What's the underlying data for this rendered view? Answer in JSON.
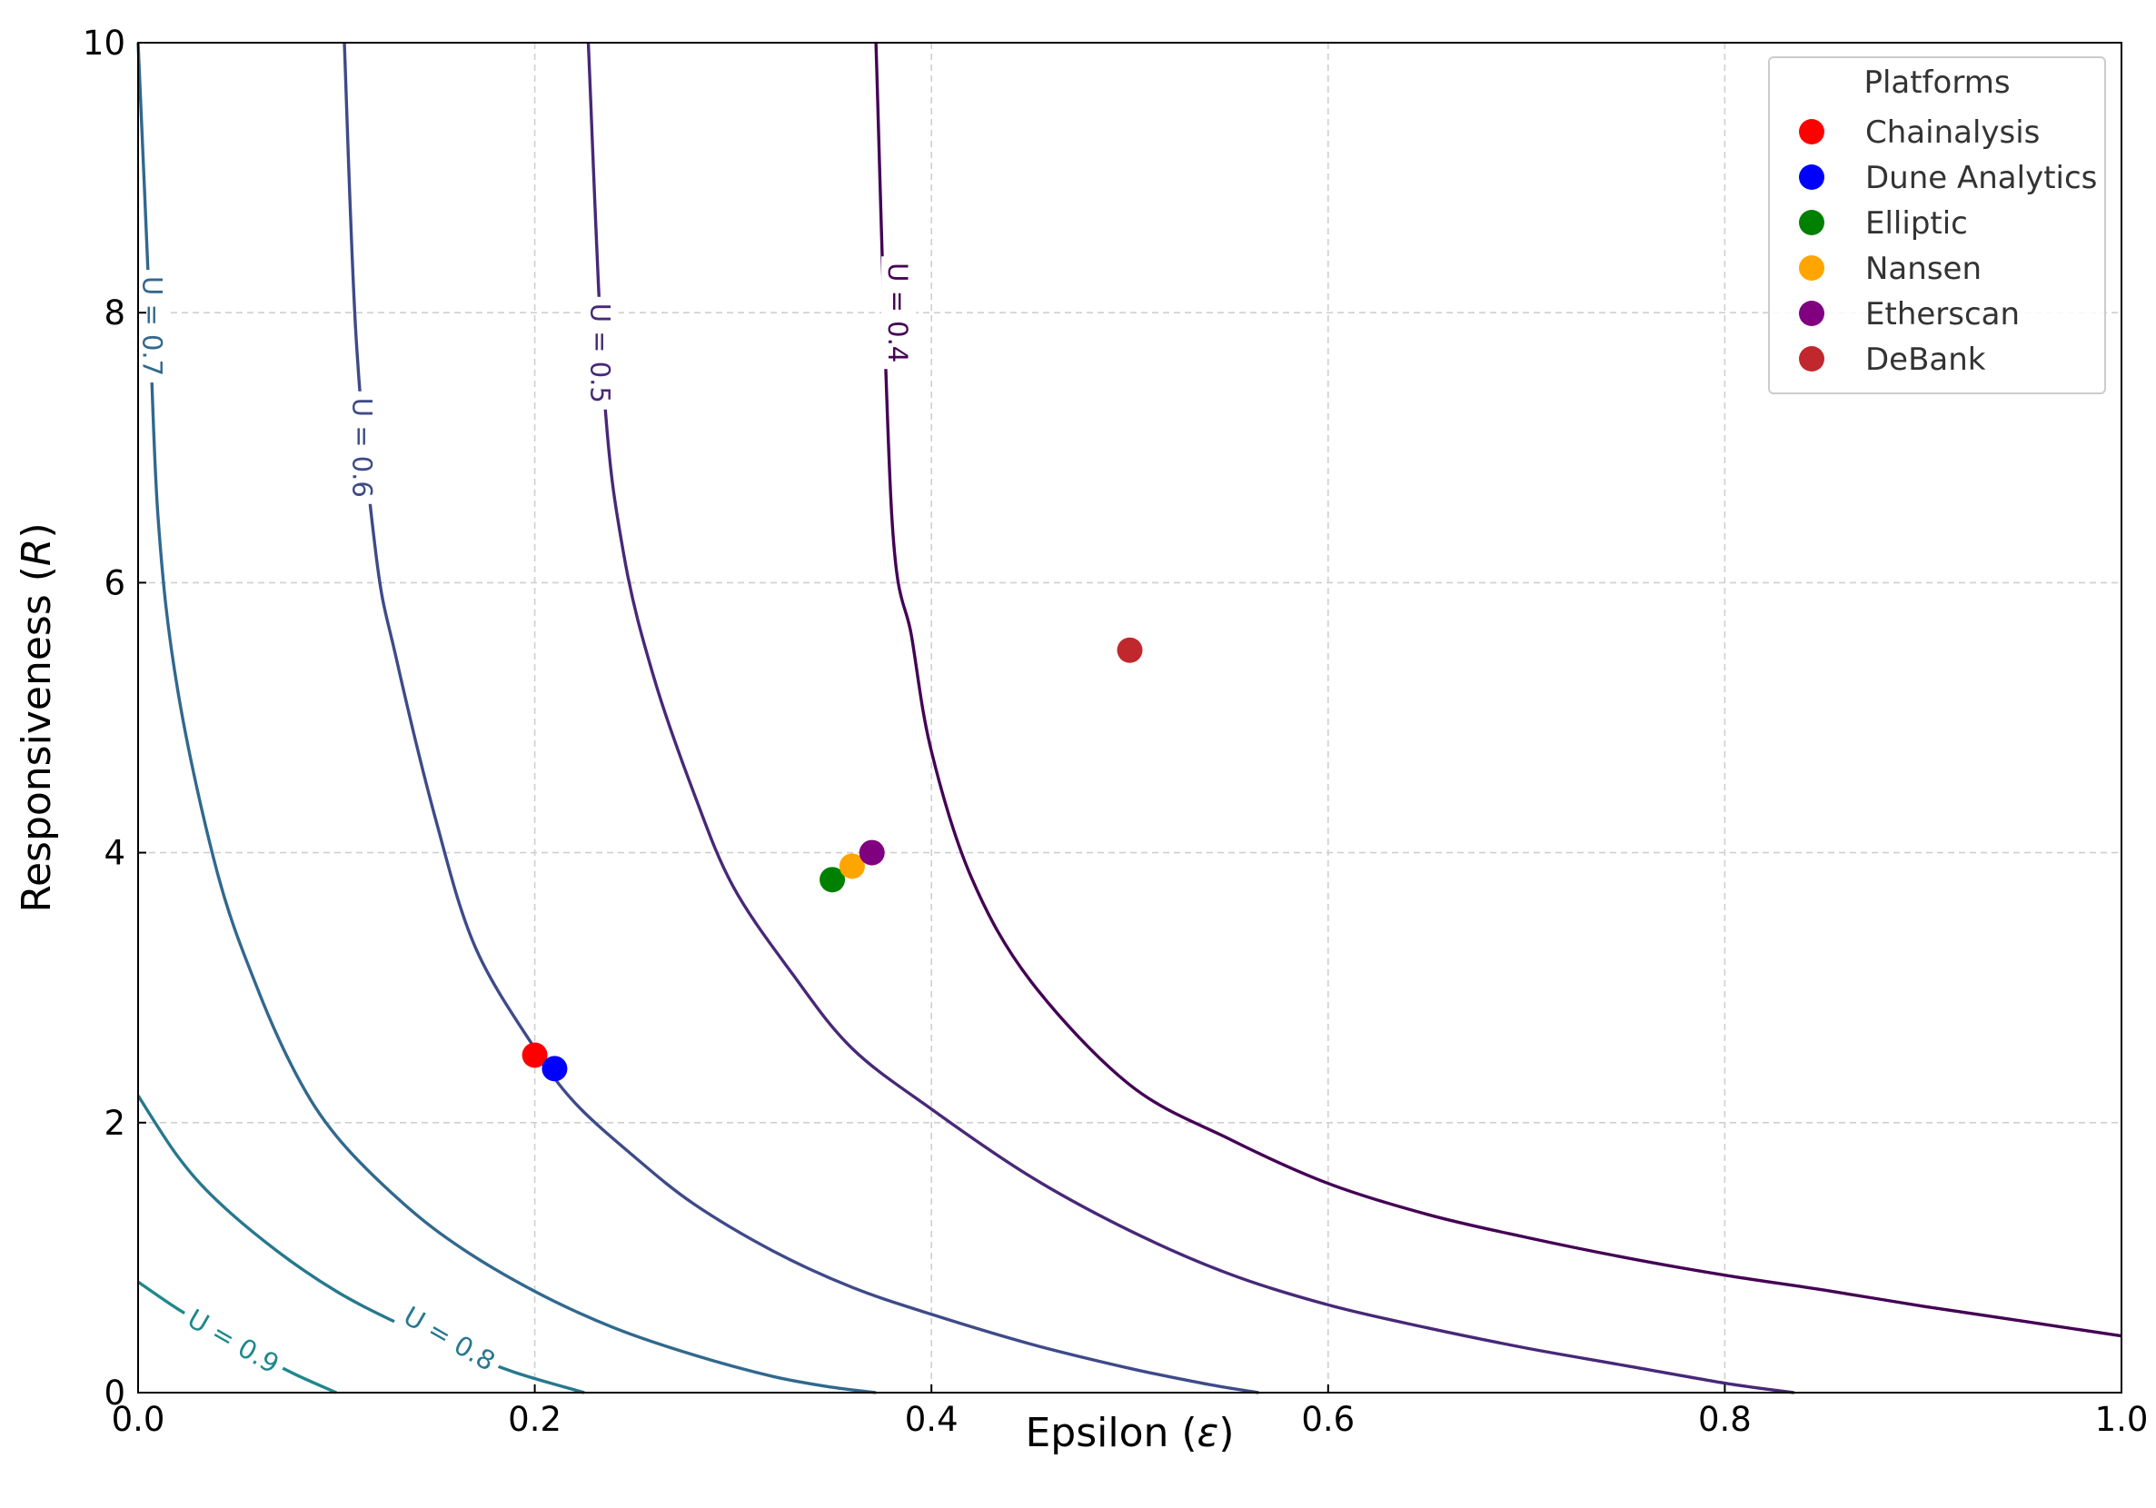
{
  "chart_data": {
    "type": "contour+scatter",
    "xlabel": "Epsilon (",
    "xlabel_symbol": "ε",
    "xlabel_close": ")",
    "ylabel": "Responsiveness (",
    "ylabel_symbol": "R",
    "ylabel_close": ")",
    "xlim": [
      0,
      1.0
    ],
    "ylim": [
      0,
      10
    ],
    "x_ticks": [
      0.0,
      0.2,
      0.4,
      0.6,
      0.8,
      1.0
    ],
    "x_tick_labels": [
      "0.0",
      "0.2",
      "0.4",
      "0.6",
      "0.8",
      "1.0"
    ],
    "y_ticks": [
      0,
      2,
      4,
      6,
      8,
      10
    ],
    "y_tick_labels": [
      "0",
      "2",
      "4",
      "6",
      "8",
      "10"
    ],
    "grid": true,
    "contours": [
      {
        "name": "contour-u-0-4",
        "label": "U = 0.4",
        "level": 0.4,
        "color": "#440154",
        "x": [
          0.372,
          0.38,
          0.39,
          0.4,
          0.42,
          0.45,
          0.5,
          0.55,
          0.6,
          0.65,
          0.7,
          0.75,
          0.8,
          0.85,
          0.9,
          0.95,
          1.0
        ],
        "y": [
          10.0,
          6.5,
          5.6,
          4.75,
          3.82,
          3.05,
          2.28,
          1.88,
          1.55,
          1.32,
          1.15,
          1.0,
          0.87,
          0.76,
          0.64,
          0.53,
          0.42
        ]
      },
      {
        "name": "contour-u-0-5",
        "label": "U = 0.5",
        "level": 0.5,
        "color": "#482878",
        "x": [
          0.227,
          0.235,
          0.245,
          0.26,
          0.28,
          0.3,
          0.33,
          0.36,
          0.4,
          0.45,
          0.5,
          0.55,
          0.6,
          0.65,
          0.7,
          0.75,
          0.8,
          0.835
        ],
        "y": [
          10.0,
          7.4,
          6.2,
          5.3,
          4.45,
          3.75,
          3.1,
          2.55,
          2.1,
          1.6,
          1.2,
          0.88,
          0.65,
          0.48,
          0.33,
          0.2,
          0.07,
          0.0
        ]
      },
      {
        "name": "contour-u-0-6",
        "label": "U = 0.6",
        "level": 0.6,
        "color": "#3e4a89",
        "x": [
          0.104,
          0.11,
          0.12,
          0.13,
          0.15,
          0.17,
          0.2,
          0.22,
          0.25,
          0.28,
          0.32,
          0.36,
          0.4,
          0.45,
          0.5,
          0.54,
          0.565
        ],
        "y": [
          10.0,
          7.8,
          6.2,
          5.45,
          4.25,
          3.3,
          2.55,
          2.15,
          1.75,
          1.4,
          1.05,
          0.78,
          0.58,
          0.36,
          0.18,
          0.06,
          0.0
        ]
      },
      {
        "name": "contour-u-0-7",
        "label": "U = 0.7",
        "level": 0.7,
        "color": "#31688e",
        "x": [
          0.0,
          0.005,
          0.01,
          0.02,
          0.04,
          0.06,
          0.08,
          0.1,
          0.13,
          0.16,
          0.2,
          0.24,
          0.28,
          0.32,
          0.35,
          0.372
        ],
        "y": [
          10.0,
          8.3,
          6.5,
          5.2,
          3.85,
          3.0,
          2.35,
          1.9,
          1.45,
          1.1,
          0.75,
          0.48,
          0.28,
          0.12,
          0.04,
          0.0
        ]
      },
      {
        "name": "contour-u-0-8",
        "label": "U = 0.8",
        "level": 0.8,
        "color": "#26788e",
        "x": [
          0.0,
          0.02,
          0.04,
          0.07,
          0.1,
          0.13,
          0.16,
          0.19,
          0.225
        ],
        "y": [
          2.2,
          1.75,
          1.42,
          1.05,
          0.75,
          0.52,
          0.32,
          0.15,
          0.0
        ]
      },
      {
        "name": "contour-u-0-9",
        "label": "U = 0.9",
        "level": 0.9,
        "color": "#1f888c",
        "x": [
          0.0,
          0.02,
          0.04,
          0.06,
          0.08,
          0.1
        ],
        "y": [
          0.82,
          0.62,
          0.45,
          0.28,
          0.13,
          0.0
        ]
      }
    ],
    "contour_labels": [
      {
        "text": "U = 0.4",
        "x": 0.383,
        "y": 8.0,
        "color": "#440154"
      },
      {
        "text": "U = 0.5",
        "x": 0.233,
        "y": 7.7,
        "color": "#482878"
      },
      {
        "text": "U = 0.6",
        "x": 0.113,
        "y": 7.0,
        "color": "#3e4a89"
      },
      {
        "text": "U = 0.7",
        "x": 0.007,
        "y": 7.9,
        "color": "#31688e"
      },
      {
        "text": "U = 0.8",
        "x": 0.157,
        "y": 0.4,
        "color": "#26788e"
      },
      {
        "text": "U = 0.9",
        "x": 0.048,
        "y": 0.38,
        "color": "#1f888c"
      }
    ],
    "series": [
      {
        "name": "Chainalysis",
        "color": "#ff0000",
        "x": 0.2,
        "y": 2.5
      },
      {
        "name": "Dune Analytics",
        "color": "#0000ff",
        "x": 0.21,
        "y": 2.4
      },
      {
        "name": "Elliptic",
        "color": "#008000",
        "x": 0.35,
        "y": 3.8
      },
      {
        "name": "Nansen",
        "color": "#ffa500",
        "x": 0.36,
        "y": 3.9
      },
      {
        "name": "Etherscan",
        "color": "#800080",
        "x": 0.37,
        "y": 4.0
      },
      {
        "name": "DeBank",
        "color": "#c0282d",
        "x": 0.5,
        "y": 5.5
      }
    ],
    "legend": {
      "title": "Platforms",
      "placement": "top-right"
    }
  }
}
